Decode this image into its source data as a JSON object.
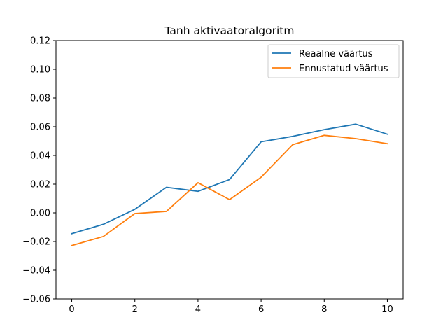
{
  "chart_data": {
    "type": "line",
    "title": "Tanh aktivaatoralgoritm",
    "xlabel": "",
    "ylabel": "",
    "x": [
      0,
      1,
      2,
      3,
      4,
      5,
      6,
      7,
      8,
      9,
      10
    ],
    "xlim": [
      -0.5,
      10.5
    ],
    "ylim": [
      -0.06,
      0.12
    ],
    "xticks": [
      0,
      2,
      4,
      6,
      8,
      10
    ],
    "xtick_labels": [
      "0",
      "2",
      "4",
      "6",
      "8",
      "10"
    ],
    "yticks": [
      -0.06,
      -0.04,
      -0.02,
      0.0,
      0.02,
      0.04,
      0.06,
      0.08,
      0.1,
      0.12
    ],
    "ytick_labels": [
      "−0.06",
      "−0.04",
      "−0.02",
      "0.00",
      "0.02",
      "0.04",
      "0.06",
      "0.08",
      "0.10",
      "0.12"
    ],
    "grid": false,
    "legend_position": "top-right",
    "series": [
      {
        "name": "Reaalne väärtus",
        "color": "#1f77b4",
        "values": [
          -0.0145,
          -0.008,
          0.0025,
          0.0178,
          0.015,
          0.0232,
          0.0495,
          0.0533,
          0.058,
          0.0618,
          0.0548
        ]
      },
      {
        "name": "Ennustatud väärtus",
        "color": "#ff7f0e",
        "values": [
          -0.0228,
          -0.0165,
          -0.0005,
          0.001,
          0.021,
          0.0092,
          0.0248,
          0.0475,
          0.054,
          0.0517,
          0.0482
        ]
      }
    ]
  }
}
